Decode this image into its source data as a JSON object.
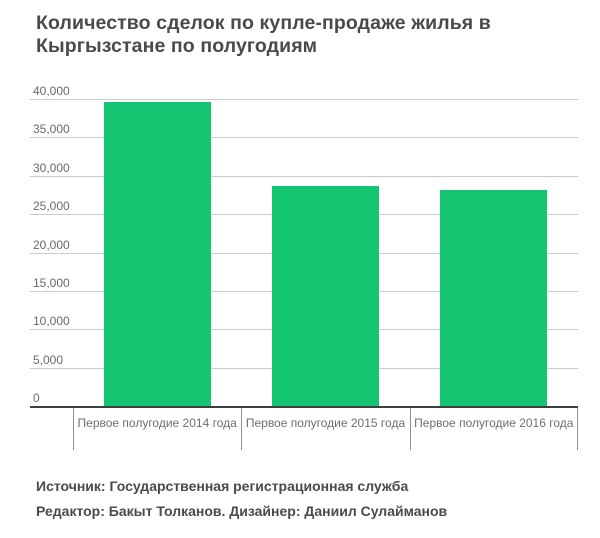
{
  "page": {
    "background": "#ffffff"
  },
  "chart_data": {
    "type": "bar",
    "title": "Количество сделок по купле-продаже жилья в Кыргызстане по полугодиям",
    "categories": [
      "Первое полугодие 2014 года",
      "Первое полугодие 2015 года",
      "Первое полугодие 2016 года"
    ],
    "values": [
      39600,
      28600,
      28100
    ],
    "xlabel": "",
    "ylabel": "",
    "ylim": [
      0,
      40000
    ],
    "ytick_step": 5000,
    "ytick_labels": [
      "0",
      "5,000",
      "10,000",
      "15,000",
      "20,000",
      "25,000",
      "30,000",
      "35,000",
      "40,000"
    ],
    "grid": true,
    "legend_position": "none",
    "bar_color": "#14c571"
  },
  "footer": {
    "source": "Источник: Государственная регистрационная служба",
    "credits": "Редактор: Бакыт Толканов. Дизайнер: Даниил Сулайманов"
  },
  "colors": {
    "bar_green": "#14c571",
    "title_text": "#4a4a4a",
    "axis_label_text": "#6e6e6e",
    "ytick_text": "#696969",
    "gridline": "#cbcbcb",
    "baseline": "#3f3f3f",
    "footer_text": "#4a4a4a"
  }
}
